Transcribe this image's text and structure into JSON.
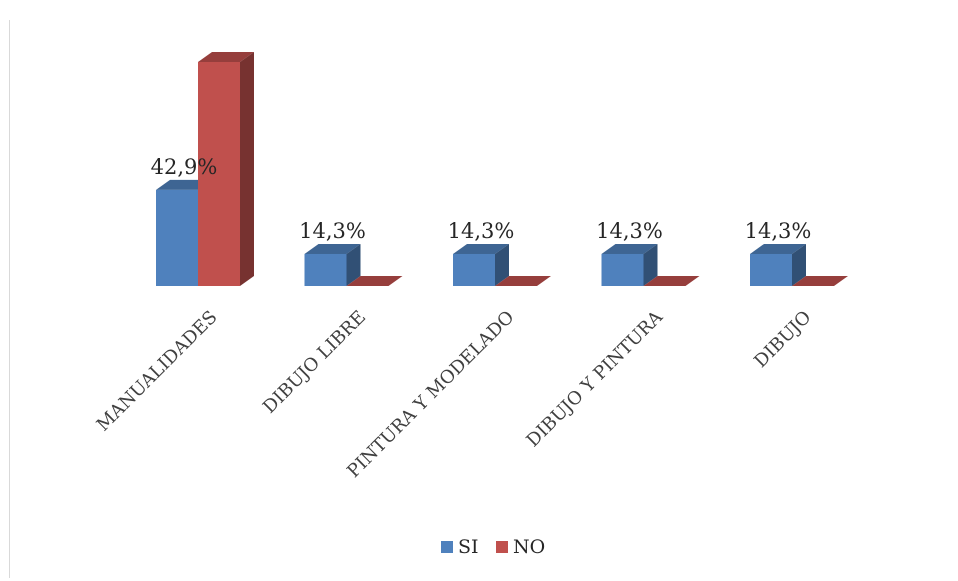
{
  "chart_data": {
    "type": "bar",
    "style": "3d-clustered-column",
    "categories": [
      "MANUALIDADES",
      "DIBUJO LIBRE",
      "PINTURA Y MODELADO",
      "DIBUJO Y PINTURA",
      "DIBUJO"
    ],
    "series": [
      {
        "name": "SI",
        "values": [
          42.9,
          14.3,
          14.3,
          14.3,
          14.3
        ],
        "labels": [
          "42,9%",
          "14,3%",
          "14,3%",
          "14,3%",
          "14,3%"
        ],
        "color": "#4f81bd"
      },
      {
        "name": "NO",
        "values": [
          100,
          0,
          0,
          0,
          0
        ],
        "labels": [
          "",
          "",
          "",
          "",
          ""
        ],
        "color": "#c0504d"
      }
    ],
    "ylim": [
      0,
      100
    ],
    "grid": false,
    "legend": "bottom"
  }
}
